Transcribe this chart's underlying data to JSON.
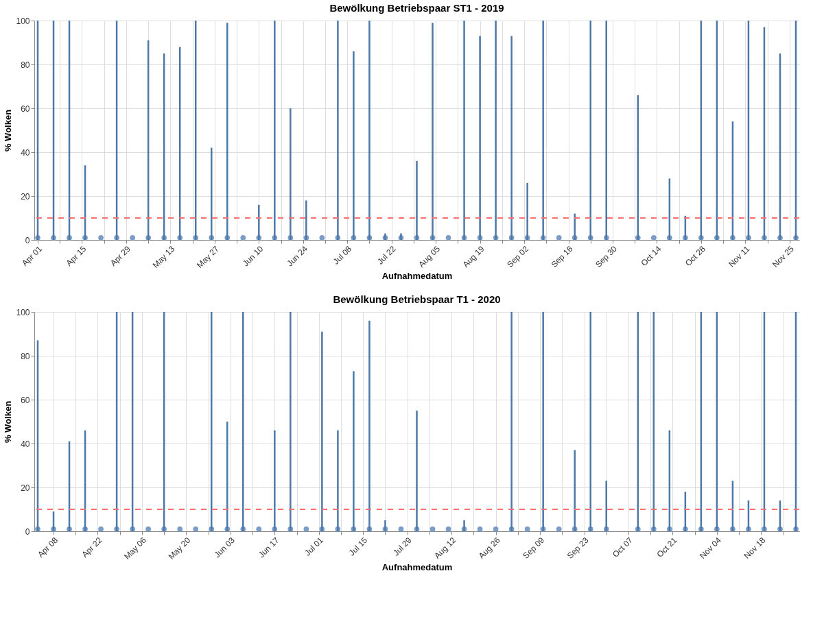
{
  "chart_data": [
    {
      "type": "bar",
      "title": "Bewölkung Betriebspaar ST1 - 2019",
      "xlabel": "Aufnahmedatum",
      "ylabel": "% Wolken",
      "x": [
        "2019-04-01",
        "2019-04-06",
        "2019-04-11",
        "2019-04-16",
        "2019-04-21",
        "2019-04-26",
        "2019-05-01",
        "2019-05-06",
        "2019-05-11",
        "2019-05-16",
        "2019-05-21",
        "2019-05-26",
        "2019-05-31",
        "2019-06-05",
        "2019-06-10",
        "2019-06-15",
        "2019-06-20",
        "2019-06-25",
        "2019-06-30",
        "2019-07-05",
        "2019-07-10",
        "2019-07-15",
        "2019-07-20",
        "2019-07-25",
        "2019-07-30",
        "2019-08-04",
        "2019-08-09",
        "2019-08-14",
        "2019-08-19",
        "2019-08-24",
        "2019-08-29",
        "2019-09-03",
        "2019-09-08",
        "2019-09-13",
        "2019-09-18",
        "2019-09-23",
        "2019-09-28",
        "2019-10-03",
        "2019-10-08",
        "2019-10-13",
        "2019-10-18",
        "2019-10-23",
        "2019-10-28",
        "2019-11-02",
        "2019-11-07",
        "2019-11-12",
        "2019-11-17",
        "2019-11-22",
        "2019-11-27"
      ],
      "series": [
        {
          "color": "#4c78a8",
          "values": [
            100,
            100,
            100,
            34,
            0,
            100,
            0,
            91,
            85,
            88,
            100,
            42,
            99,
            0,
            16,
            100,
            60,
            18,
            0,
            100,
            86,
            100,
            3,
            3,
            36,
            99,
            0,
            100,
            93,
            100,
            93,
            26,
            100,
            0,
            12,
            100,
            100,
            null,
            66,
            0,
            28,
            11,
            100,
            100,
            54,
            100,
            97,
            85,
            100
          ]
        },
        {
          "type": "scatter",
          "marker": "circle",
          "color": "#7a9cc6",
          "values": [
            1,
            1,
            1,
            1,
            1,
            1,
            1,
            1,
            1,
            1,
            1,
            1,
            1,
            1,
            1,
            1,
            1,
            1,
            1,
            1,
            1,
            1,
            1,
            1,
            1,
            1,
            1,
            1,
            1,
            1,
            1,
            1,
            1,
            1,
            1,
            1,
            1,
            null,
            1,
            1,
            1,
            1,
            1,
            1,
            1,
            1,
            1,
            1,
            1
          ]
        }
      ],
      "xlim": [
        "2019-04-01",
        "2019-11-27"
      ],
      "xticks": [
        {
          "value": "2019-04-01",
          "label": "Apr 01"
        },
        {
          "value": "2019-04-08",
          "label": null
        },
        {
          "value": "2019-04-15",
          "label": "Apr 15"
        },
        {
          "value": "2019-04-22",
          "label": null
        },
        {
          "value": "2019-04-29",
          "label": "Apr 29"
        },
        {
          "value": "2019-05-06",
          "label": null
        },
        {
          "value": "2019-05-13",
          "label": "May 13"
        },
        {
          "value": "2019-05-20",
          "label": null
        },
        {
          "value": "2019-05-27",
          "label": "May 27"
        },
        {
          "value": "2019-06-03",
          "label": null
        },
        {
          "value": "2019-06-10",
          "label": "Jun 10"
        },
        {
          "value": "2019-06-17",
          "label": null
        },
        {
          "value": "2019-06-24",
          "label": "Jun 24"
        },
        {
          "value": "2019-07-01",
          "label": null
        },
        {
          "value": "2019-07-08",
          "label": "Jul 08"
        },
        {
          "value": "2019-07-15",
          "label": null
        },
        {
          "value": "2019-07-22",
          "label": "Jul 22"
        },
        {
          "value": "2019-07-29",
          "label": null
        },
        {
          "value": "2019-08-05",
          "label": "Aug 05"
        },
        {
          "value": "2019-08-12",
          "label": null
        },
        {
          "value": "2019-08-19",
          "label": "Aug 19"
        },
        {
          "value": "2019-08-26",
          "label": null
        },
        {
          "value": "2019-09-02",
          "label": "Sep 02"
        },
        {
          "value": "2019-09-09",
          "label": null
        },
        {
          "value": "2019-09-16",
          "label": "Sep 16"
        },
        {
          "value": "2019-09-23",
          "label": null
        },
        {
          "value": "2019-09-30",
          "label": "Sep 30"
        },
        {
          "value": "2019-10-07",
          "label": null
        },
        {
          "value": "2019-10-14",
          "label": "Oct 14"
        },
        {
          "value": "2019-10-21",
          "label": null
        },
        {
          "value": "2019-10-28",
          "label": "Oct 28"
        },
        {
          "value": "2019-11-04",
          "label": null
        },
        {
          "value": "2019-11-11",
          "label": "Nov 11"
        },
        {
          "value": "2019-11-18",
          "label": null
        },
        {
          "value": "2019-11-25",
          "label": "Nov 25"
        }
      ],
      "ylim": [
        0,
        100
      ],
      "yticks": [
        0,
        20,
        40,
        60,
        80,
        100
      ],
      "grid": true,
      "ref_lines": [
        {
          "axis": "y",
          "value": 10,
          "color": "#ff6f6f",
          "line_style": "dashed"
        }
      ]
    },
    {
      "type": "bar",
      "title": "Bewölkung Betriebspaar T1 - 2020",
      "xlabel": "Aufnahmedatum",
      "ylabel": "% Wolken",
      "x": [
        "2020-04-03",
        "2020-04-08",
        "2020-04-13",
        "2020-04-18",
        "2020-04-23",
        "2020-04-28",
        "2020-05-03",
        "2020-05-08",
        "2020-05-13",
        "2020-05-18",
        "2020-05-23",
        "2020-05-28",
        "2020-06-02",
        "2020-06-07",
        "2020-06-12",
        "2020-06-17",
        "2020-06-22",
        "2020-06-27",
        "2020-07-02",
        "2020-07-07",
        "2020-07-12",
        "2020-07-17",
        "2020-07-22",
        "2020-07-27",
        "2020-08-01",
        "2020-08-06",
        "2020-08-11",
        "2020-08-16",
        "2020-08-21",
        "2020-08-26",
        "2020-08-31",
        "2020-09-05",
        "2020-09-10",
        "2020-09-15",
        "2020-09-20",
        "2020-09-25",
        "2020-09-30",
        "2020-10-05",
        "2020-10-10",
        "2020-10-15",
        "2020-10-20",
        "2020-10-25",
        "2020-10-30",
        "2020-11-04",
        "2020-11-09",
        "2020-11-14",
        "2020-11-19",
        "2020-11-24",
        "2020-11-29"
      ],
      "series": [
        {
          "color": "#4c78a8",
          "values": [
            87,
            9,
            41,
            46,
            0,
            100,
            100,
            0,
            100,
            0,
            0,
            100,
            50,
            100,
            0,
            46,
            100,
            0,
            91,
            46,
            73,
            96,
            5,
            0,
            55,
            0,
            0,
            5,
            0,
            0,
            100,
            0,
            100,
            0,
            37,
            100,
            23,
            null,
            100,
            100,
            46,
            18,
            100,
            100,
            23,
            14,
            100,
            14,
            100
          ]
        },
        {
          "type": "scatter",
          "marker": "circle",
          "color": "#7a9cc6",
          "values": [
            1,
            1,
            1,
            1,
            1,
            1,
            1,
            1,
            1,
            1,
            1,
            1,
            1,
            1,
            1,
            1,
            1,
            1,
            1,
            1,
            1,
            1,
            1,
            1,
            1,
            1,
            1,
            1,
            1,
            1,
            1,
            1,
            1,
            1,
            1,
            1,
            1,
            null,
            1,
            1,
            1,
            1,
            1,
            1,
            1,
            1,
            1,
            1,
            1
          ]
        }
      ],
      "xlim": [
        "2020-04-03",
        "2020-11-29"
      ],
      "xticks": [
        {
          "value": "2020-04-08",
          "label": "Apr 08"
        },
        {
          "value": "2020-04-15",
          "label": null
        },
        {
          "value": "2020-04-22",
          "label": "Apr 22"
        },
        {
          "value": "2020-04-29",
          "label": null
        },
        {
          "value": "2020-05-06",
          "label": "May 06"
        },
        {
          "value": "2020-05-13",
          "label": null
        },
        {
          "value": "2020-05-20",
          "label": "May 20"
        },
        {
          "value": "2020-05-27",
          "label": null
        },
        {
          "value": "2020-06-03",
          "label": "Jun 03"
        },
        {
          "value": "2020-06-10",
          "label": null
        },
        {
          "value": "2020-06-17",
          "label": "Jun 17"
        },
        {
          "value": "2020-06-24",
          "label": null
        },
        {
          "value": "2020-07-01",
          "label": "Jul 01"
        },
        {
          "value": "2020-07-08",
          "label": null
        },
        {
          "value": "2020-07-15",
          "label": "Jul 15"
        },
        {
          "value": "2020-07-22",
          "label": null
        },
        {
          "value": "2020-07-29",
          "label": "Jul 29"
        },
        {
          "value": "2020-08-05",
          "label": null
        },
        {
          "value": "2020-08-12",
          "label": "Aug 12"
        },
        {
          "value": "2020-08-19",
          "label": null
        },
        {
          "value": "2020-08-26",
          "label": "Aug 26"
        },
        {
          "value": "2020-09-02",
          "label": null
        },
        {
          "value": "2020-09-09",
          "label": "Sep 09"
        },
        {
          "value": "2020-09-16",
          "label": null
        },
        {
          "value": "2020-09-23",
          "label": "Sep 23"
        },
        {
          "value": "2020-09-30",
          "label": null
        },
        {
          "value": "2020-10-07",
          "label": "Oct 07"
        },
        {
          "value": "2020-10-14",
          "label": null
        },
        {
          "value": "2020-10-21",
          "label": "Oct 21"
        },
        {
          "value": "2020-10-28",
          "label": null
        },
        {
          "value": "2020-11-04",
          "label": "Nov 04"
        },
        {
          "value": "2020-11-11",
          "label": null
        },
        {
          "value": "2020-11-18",
          "label": "Nov 18"
        },
        {
          "value": "2020-11-25",
          "label": null
        }
      ],
      "ylim": [
        0,
        100
      ],
      "yticks": [
        0,
        20,
        40,
        60,
        80,
        100
      ],
      "grid": true,
      "ref_lines": [
        {
          "axis": "y",
          "value": 10,
          "color": "#ff6f6f",
          "line_style": "dashed"
        }
      ]
    }
  ]
}
